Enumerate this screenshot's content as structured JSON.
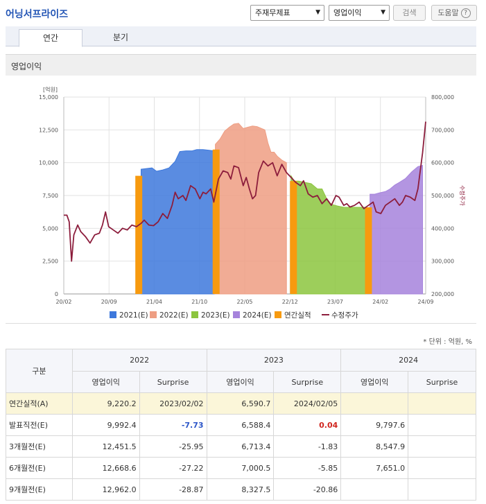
{
  "company": "어닝서프라이즈",
  "controls": {
    "statement_select": "주재무제표",
    "item_select": "영업이익",
    "search_label": "검색",
    "help_label": "도움말",
    "help_icon_text": "?"
  },
  "tabs": [
    {
      "label": "연간"
    },
    {
      "label": "분기"
    }
  ],
  "section_title": "영업이익",
  "unit_note": "* 단위 : 억원, %",
  "chart_data": {
    "type": "area",
    "left_axis_unit": "[억원]",
    "right_axis_label": "수정주가",
    "left_ticks": [
      "15,000",
      "12,500",
      "10,000",
      "7,500",
      "5,000",
      "2,500",
      "0"
    ],
    "right_ticks": [
      "800,000",
      "700,000",
      "600,000",
      "500,000",
      "400,000",
      "300,000",
      "200,000"
    ],
    "ylim_left": [
      0,
      15000
    ],
    "ylim_right": [
      200000,
      800000
    ],
    "x_ticks": [
      "20/02",
      "20/09",
      "21/04",
      "21/10",
      "22/05",
      "22/12",
      "23/07",
      "24/02",
      "24/09"
    ],
    "grid": true,
    "legend_position": "bottom",
    "legend": [
      {
        "label": "2021(E)",
        "color": "#3d78dc",
        "kind": "square"
      },
      {
        "label": "2022(E)",
        "color": "#ee9e83",
        "kind": "square"
      },
      {
        "label": "2023(E)",
        "color": "#8cc53e",
        "kind": "square"
      },
      {
        "label": "2024(E)",
        "color": "#a683dc",
        "kind": "square"
      },
      {
        "label": "연간실적",
        "color": "#f79a0f",
        "kind": "square"
      },
      {
        "label": "수정주가",
        "color": "#8c1d3c",
        "kind": "line"
      }
    ],
    "series": [
      {
        "name": "2021(E)",
        "color": "#3d78dc",
        "points": [
          [
            2021.08,
            9500
          ],
          [
            2021.14,
            9550
          ],
          [
            2021.22,
            9600
          ],
          [
            2021.28,
            9350
          ],
          [
            2021.36,
            9450
          ],
          [
            2021.44,
            9600
          ],
          [
            2021.52,
            10100
          ],
          [
            2021.58,
            10850
          ],
          [
            2021.66,
            10900
          ],
          [
            2021.74,
            10900
          ],
          [
            2021.8,
            11000
          ],
          [
            2021.88,
            11000
          ],
          [
            2021.96,
            10950
          ],
          [
            2022.02,
            10900
          ]
        ]
      },
      {
        "name": "2022(E)",
        "color": "#ee9e83",
        "points": [
          [
            2022.04,
            11400
          ],
          [
            2022.1,
            11800
          ],
          [
            2022.16,
            12400
          ],
          [
            2022.22,
            12700
          ],
          [
            2022.28,
            12950
          ],
          [
            2022.34,
            13000
          ],
          [
            2022.4,
            12600
          ],
          [
            2022.46,
            12700
          ],
          [
            2022.52,
            12800
          ],
          [
            2022.58,
            12750
          ],
          [
            2022.64,
            12600
          ],
          [
            2022.68,
            12500
          ],
          [
            2022.72,
            11500
          ],
          [
            2022.76,
            10800
          ],
          [
            2022.8,
            10800
          ],
          [
            2022.84,
            10500
          ],
          [
            2022.9,
            10200
          ],
          [
            2022.96,
            10000
          ]
        ]
      },
      {
        "name": "2023(E)",
        "color": "#8cc53e",
        "points": [
          [
            2023.02,
            9000
          ],
          [
            2023.06,
            8600
          ],
          [
            2023.12,
            8600
          ],
          [
            2023.2,
            8500
          ],
          [
            2023.28,
            8400
          ],
          [
            2023.36,
            8000
          ],
          [
            2023.42,
            8000
          ],
          [
            2023.46,
            7500
          ],
          [
            2023.5,
            7000
          ],
          [
            2023.56,
            6800
          ],
          [
            2023.62,
            6700
          ],
          [
            2023.7,
            6600
          ],
          [
            2023.78,
            6600
          ],
          [
            2023.86,
            6600
          ],
          [
            2023.92,
            6600
          ],
          [
            2023.98,
            6600
          ]
        ]
      },
      {
        "name": "2024(E)",
        "color": "#a683dc",
        "points": [
          [
            2024.04,
            7600
          ],
          [
            2024.1,
            7600
          ],
          [
            2024.16,
            7700
          ],
          [
            2024.24,
            7800
          ],
          [
            2024.3,
            8000
          ],
          [
            2024.36,
            8300
          ],
          [
            2024.42,
            8500
          ],
          [
            2024.5,
            8800
          ],
          [
            2024.58,
            9300
          ],
          [
            2024.66,
            9700
          ],
          [
            2024.72,
            9800
          ]
        ]
      },
      {
        "name": "연간실적",
        "color": "#f79a0f",
        "bars": [
          [
            2021.05,
            9000
          ],
          [
            2022.05,
            11000
          ],
          [
            2023.05,
            8600
          ],
          [
            2024.02,
            6600
          ]
        ]
      },
      {
        "name": "수정주가",
        "color": "#8c1d3c",
        "axis": "right",
        "points": [
          [
            2020.08,
            440000
          ],
          [
            2020.12,
            440000
          ],
          [
            2020.15,
            420000
          ],
          [
            2020.18,
            300000
          ],
          [
            2020.21,
            380000
          ],
          [
            2020.26,
            410000
          ],
          [
            2020.3,
            390000
          ],
          [
            2020.36,
            375000
          ],
          [
            2020.42,
            355000
          ],
          [
            2020.48,
            380000
          ],
          [
            2020.54,
            385000
          ],
          [
            2020.58,
            410000
          ],
          [
            2020.62,
            450000
          ],
          [
            2020.66,
            405000
          ],
          [
            2020.72,
            395000
          ],
          [
            2020.78,
            385000
          ],
          [
            2020.84,
            400000
          ],
          [
            2020.9,
            395000
          ],
          [
            2020.96,
            410000
          ],
          [
            2021.02,
            405000
          ],
          [
            2021.08,
            415000
          ],
          [
            2021.12,
            425000
          ],
          [
            2021.18,
            410000
          ],
          [
            2021.24,
            408000
          ],
          [
            2021.3,
            420000
          ],
          [
            2021.36,
            445000
          ],
          [
            2021.42,
            430000
          ],
          [
            2021.48,
            470000
          ],
          [
            2021.52,
            510000
          ],
          [
            2021.56,
            490000
          ],
          [
            2021.62,
            500000
          ],
          [
            2021.66,
            485000
          ],
          [
            2021.72,
            530000
          ],
          [
            2021.78,
            520000
          ],
          [
            2021.84,
            490000
          ],
          [
            2021.88,
            510000
          ],
          [
            2021.92,
            505000
          ],
          [
            2021.98,
            520000
          ],
          [
            2022.02,
            480000
          ],
          [
            2022.08,
            550000
          ],
          [
            2022.14,
            575000
          ],
          [
            2022.2,
            570000
          ],
          [
            2022.24,
            550000
          ],
          [
            2022.28,
            590000
          ],
          [
            2022.34,
            585000
          ],
          [
            2022.4,
            530000
          ],
          [
            2022.44,
            555000
          ],
          [
            2022.48,
            520000
          ],
          [
            2022.52,
            490000
          ],
          [
            2022.56,
            500000
          ],
          [
            2022.6,
            570000
          ],
          [
            2022.66,
            605000
          ],
          [
            2022.72,
            590000
          ],
          [
            2022.78,
            600000
          ],
          [
            2022.84,
            560000
          ],
          [
            2022.9,
            595000
          ],
          [
            2022.96,
            570000
          ],
          [
            2023.02,
            555000
          ],
          [
            2023.08,
            540000
          ],
          [
            2023.14,
            530000
          ],
          [
            2023.18,
            545000
          ],
          [
            2023.24,
            505000
          ],
          [
            2023.3,
            495000
          ],
          [
            2023.36,
            500000
          ],
          [
            2023.42,
            475000
          ],
          [
            2023.48,
            490000
          ],
          [
            2023.54,
            470000
          ],
          [
            2023.6,
            500000
          ],
          [
            2023.64,
            495000
          ],
          [
            2023.7,
            470000
          ],
          [
            2023.74,
            475000
          ],
          [
            2023.78,
            465000
          ],
          [
            2023.84,
            470000
          ],
          [
            2023.9,
            480000
          ],
          [
            2023.96,
            460000
          ],
          [
            2024.02,
            470000
          ],
          [
            2024.08,
            480000
          ],
          [
            2024.12,
            450000
          ],
          [
            2024.18,
            445000
          ],
          [
            2024.24,
            470000
          ],
          [
            2024.3,
            480000
          ],
          [
            2024.36,
            490000
          ],
          [
            2024.42,
            470000
          ],
          [
            2024.46,
            480000
          ],
          [
            2024.5,
            500000
          ],
          [
            2024.56,
            495000
          ],
          [
            2024.62,
            485000
          ],
          [
            2024.66,
            520000
          ],
          [
            2024.72,
            630000
          ],
          [
            2024.76,
            725000
          ]
        ]
      }
    ]
  },
  "table": {
    "corner": "구분",
    "years": [
      "2022",
      "2023",
      "2024"
    ],
    "subheaders": [
      "영업이익",
      "Surprise",
      "영업이익",
      "Surprise",
      "영업이익",
      "Surprise"
    ],
    "rows": [
      {
        "label": "연간실적(A)",
        "cells": [
          "9,220.2",
          "2023/02/02",
          "6,590.7",
          "2024/02/05",
          "",
          ""
        ]
      },
      {
        "label": "발표직전(E)",
        "cells": [
          "9,992.4",
          "-7.73",
          "6,588.4",
          "0.04",
          "9,797.6",
          ""
        ]
      },
      {
        "label": "3개월전(E)",
        "cells": [
          "12,451.5",
          "-25.95",
          "6,713.4",
          "-1.83",
          "8,547.9",
          ""
        ]
      },
      {
        "label": "6개월전(E)",
        "cells": [
          "12,668.6",
          "-27.22",
          "7,000.5",
          "-5.85",
          "7,651.0",
          ""
        ]
      },
      {
        "label": "9개월전(E)",
        "cells": [
          "12,962.0",
          "-28.87",
          "8,327.5",
          "-20.86",
          "",
          ""
        ]
      }
    ]
  }
}
